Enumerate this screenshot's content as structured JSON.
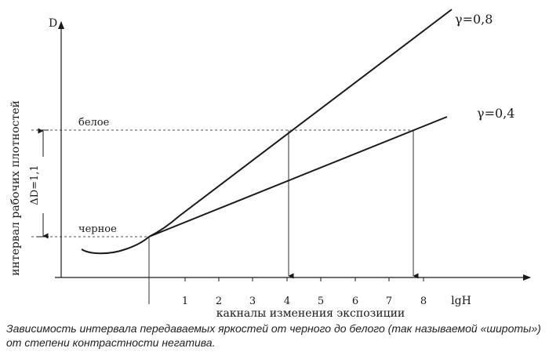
{
  "diagram": {
    "y_axis_symbol": "D",
    "y_axis_title": "интервал рабочих плотностей",
    "x_axis_title": "какналы изменения экспозиции",
    "x_axis_end_label": "lgH",
    "x_ticks": [
      "1",
      "2",
      "3",
      "4",
      "5",
      "6",
      "7",
      "8"
    ],
    "curves": [
      {
        "gamma_label": "γ=0,8",
        "gamma": 0.8
      },
      {
        "gamma_label": "γ=0,4",
        "gamma": 0.4
      }
    ],
    "white_label": "белое",
    "black_label": "черное",
    "delta_label": "ΔD=1,1",
    "projection_x": {
      "black": 0,
      "white_gamma_0_8": 4,
      "white_gamma_0_4": 7.7
    }
  },
  "caption": "Зависимость интервала передаваемых яркостей от черного до белого (так называемой «широты») от степени контрастности негатива."
}
